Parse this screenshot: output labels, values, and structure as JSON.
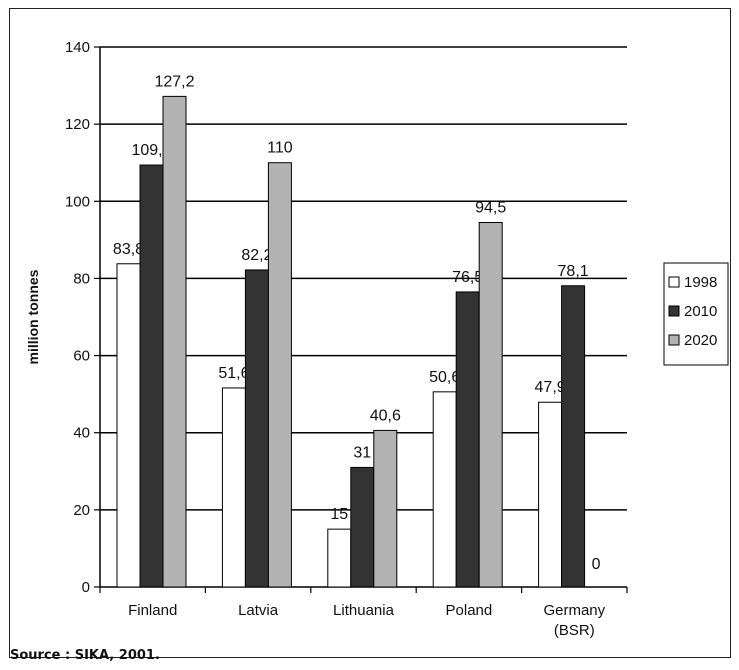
{
  "chart_data": {
    "type": "bar",
    "ylabel": "million tonnes",
    "ylim": [
      0,
      140
    ],
    "yticks": [
      0,
      20,
      40,
      60,
      80,
      100,
      120,
      140
    ],
    "grid": "horizontal",
    "legend_position": "right",
    "categories": [
      "Finland",
      "Latvia",
      "Lithuania",
      "Poland",
      "Germany (BSR)"
    ],
    "category_lines": [
      [
        "Finland"
      ],
      [
        "Latvia"
      ],
      [
        "Lithuania"
      ],
      [
        "Poland"
      ],
      [
        "Germany",
        "(BSR)"
      ]
    ],
    "series": [
      {
        "name": "1998",
        "color": "#ffffff",
        "values": [
          83.8,
          51.6,
          15,
          50.6,
          47.9
        ],
        "labels": [
          "83,8",
          "51,6",
          "15",
          "50,6",
          "47,9"
        ]
      },
      {
        "name": "2010",
        "color": "#333333",
        "values": [
          109.4,
          82.2,
          31,
          76.5,
          78.1
        ],
        "labels": [
          "109,4",
          "82,2",
          "31",
          "76,5",
          "78,1"
        ]
      },
      {
        "name": "2020",
        "color": "#b3b3b3",
        "values": [
          127.2,
          110,
          40.6,
          94.5,
          0
        ],
        "labels": [
          "127,2",
          "110",
          "40,6",
          "94,5",
          "0"
        ]
      }
    ]
  },
  "source": "Source : SIKA, 2001."
}
